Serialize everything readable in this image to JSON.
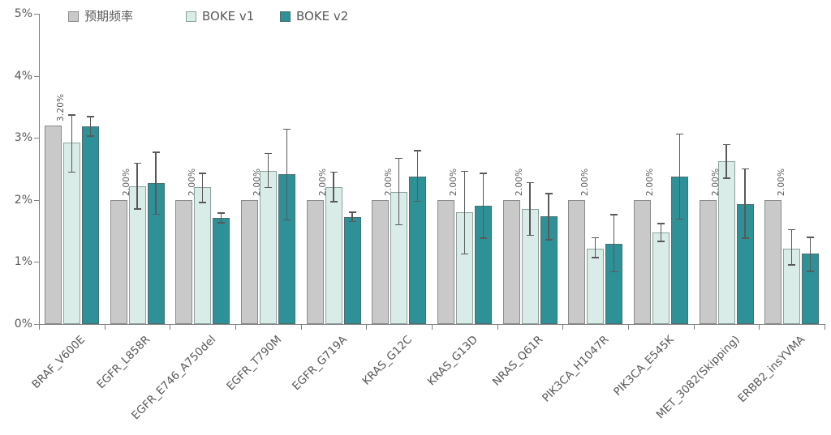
{
  "chart_data": {
    "type": "bar",
    "title": "",
    "categories": [
      "BRAF_V600E",
      "EGFR_L858R",
      "EGFR_E746_A750del",
      "EGFR_T790M",
      "EGFR_G719A",
      "KRAS_G12C",
      "KRAS_G13D",
      "NRAS_Q61R",
      "PIK3CA_H1047R",
      "PIK3CA_E545K",
      "MET_3082(Skipping)",
      "ERBB2_insYVMA"
    ],
    "series": [
      {
        "name": "预期频率",
        "color": "#c9c9c9",
        "border": "#8b8b8b",
        "values": [
          3.2,
          2.0,
          2.0,
          2.0,
          2.0,
          2.0,
          2.0,
          2.0,
          2.0,
          2.0,
          2.0,
          2.0
        ],
        "bar_labels": [
          "3.20%",
          "2.00%",
          "2.00%",
          "2.00%",
          "2.00%",
          "2.00%",
          "2.00%",
          "2.00%",
          "2.00%",
          "2.00%",
          "2.00%",
          "2.00%"
        ]
      },
      {
        "name": "BOKE v1",
        "color": "#d9ece8",
        "border": "#8ba29f",
        "values": [
          2.92,
          2.22,
          2.2,
          2.47,
          2.21,
          2.13,
          1.8,
          1.86,
          1.22,
          1.47,
          2.62,
          1.22
        ],
        "err_low": [
          2.45,
          1.85,
          1.96,
          2.2,
          1.97,
          1.6,
          1.13,
          1.43,
          1.07,
          1.33,
          2.35,
          0.95
        ],
        "err_high": [
          3.37,
          2.59,
          2.43,
          2.75,
          2.45,
          2.67,
          2.46,
          2.28,
          1.39,
          1.62,
          2.89,
          1.52
        ]
      },
      {
        "name": "BOKE v2",
        "color": "#2e9197",
        "border": "#4a6f70",
        "values": [
          3.19,
          2.27,
          1.71,
          2.41,
          1.72,
          2.37,
          1.91,
          1.73,
          1.29,
          2.37,
          1.93,
          1.13
        ],
        "err_low": [
          3.03,
          1.77,
          1.63,
          1.68,
          1.65,
          1.98,
          1.38,
          1.36,
          0.84,
          1.69,
          1.38,
          0.85
        ],
        "err_high": [
          3.34,
          2.77,
          1.79,
          3.14,
          1.8,
          2.79,
          2.43,
          2.1,
          1.76,
          3.06,
          2.5,
          1.4
        ]
      }
    ],
    "ylim": [
      0,
      5
    ],
    "ytick_labels": [
      "0%",
      "1%",
      "2%",
      "3%",
      "4%",
      "5%"
    ],
    "grid": false,
    "legend_position": "top-left",
    "error_bar_color": "#595959",
    "axis_color": "#7f7f7f",
    "text_color": "#595959"
  },
  "legend_x_positions": [
    84,
    229,
    345
  ]
}
